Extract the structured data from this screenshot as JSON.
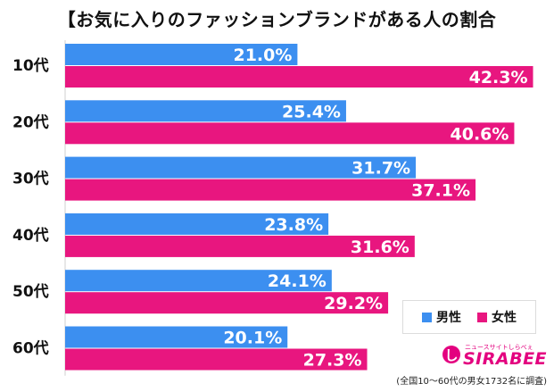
{
  "chart_data": {
    "type": "bar",
    "orientation": "horizontal",
    "title": "【お気に入りのファッションブランドがある人の割合",
    "categories": [
      "10代",
      "20代",
      "30代",
      "40代",
      "50代",
      "60代"
    ],
    "series": [
      {
        "name": "男性",
        "values": [
          21.0,
          25.4,
          31.7,
          23.8,
          24.1,
          20.1
        ],
        "color": "#3c8ff0"
      },
      {
        "name": "女性",
        "values": [
          42.3,
          40.6,
          37.1,
          31.6,
          29.2,
          27.3
        ],
        "color": "#e8167f"
      }
    ],
    "value_labels": {
      "男性": [
        "21.0%",
        "25.4%",
        "31.7%",
        "23.8%",
        "24.1%",
        "20.1%"
      ],
      "女性": [
        "42.3%",
        "40.6%",
        "37.1%",
        "31.6%",
        "29.2%",
        "27.3%"
      ]
    },
    "unit": "%",
    "legend_position": "bottom-right",
    "grid": false,
    "footnote": "(全国10〜60代の男女1732名に調査)"
  },
  "logo": {
    "brand": "SIRABEE",
    "tagline": "ニュースサイトしらべぇ"
  }
}
